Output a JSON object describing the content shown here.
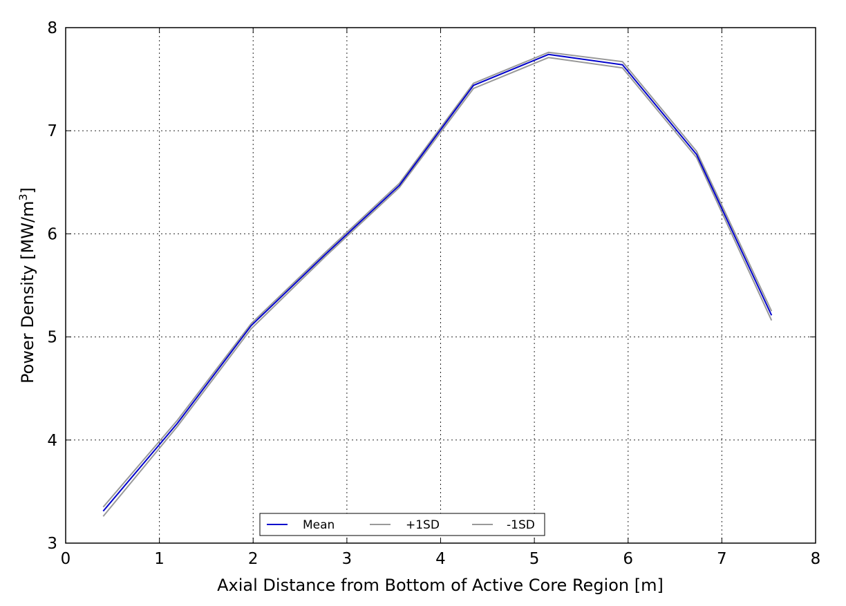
{
  "chart_data": {
    "type": "line",
    "title": "",
    "xlabel": "Axial Distance from Bottom of Active Core Region [m]",
    "ylabel_main": "Power Density [MW/m",
    "ylabel_sup": "3",
    "ylabel_end": "]",
    "xlim": [
      0,
      8
    ],
    "ylim": [
      3,
      8
    ],
    "xticks": [
      "0",
      "1",
      "2",
      "3",
      "4",
      "5",
      "6",
      "7",
      "8"
    ],
    "yticks": [
      "3",
      "4",
      "5",
      "6",
      "7",
      "8"
    ],
    "grid": true,
    "legend_position": "bottom-center",
    "x": [
      0.4,
      1.19,
      1.98,
      2.77,
      3.56,
      4.35,
      5.15,
      5.94,
      6.73,
      7.53
    ],
    "series": [
      {
        "name": "Mean",
        "color": "#0000cc",
        "values": [
          3.31,
          4.16,
          5.11,
          5.8,
          6.47,
          7.44,
          7.74,
          7.64,
          6.77,
          5.21
        ]
      },
      {
        "name": "+1SD",
        "color": "#999999",
        "values": [
          3.35,
          4.19,
          5.13,
          5.82,
          6.49,
          7.46,
          7.76,
          7.67,
          6.8,
          5.25
        ]
      },
      {
        "name": "-1SD",
        "color": "#999999",
        "values": [
          3.26,
          4.13,
          5.08,
          5.78,
          6.45,
          7.41,
          7.71,
          7.61,
          6.74,
          5.16
        ]
      }
    ]
  }
}
